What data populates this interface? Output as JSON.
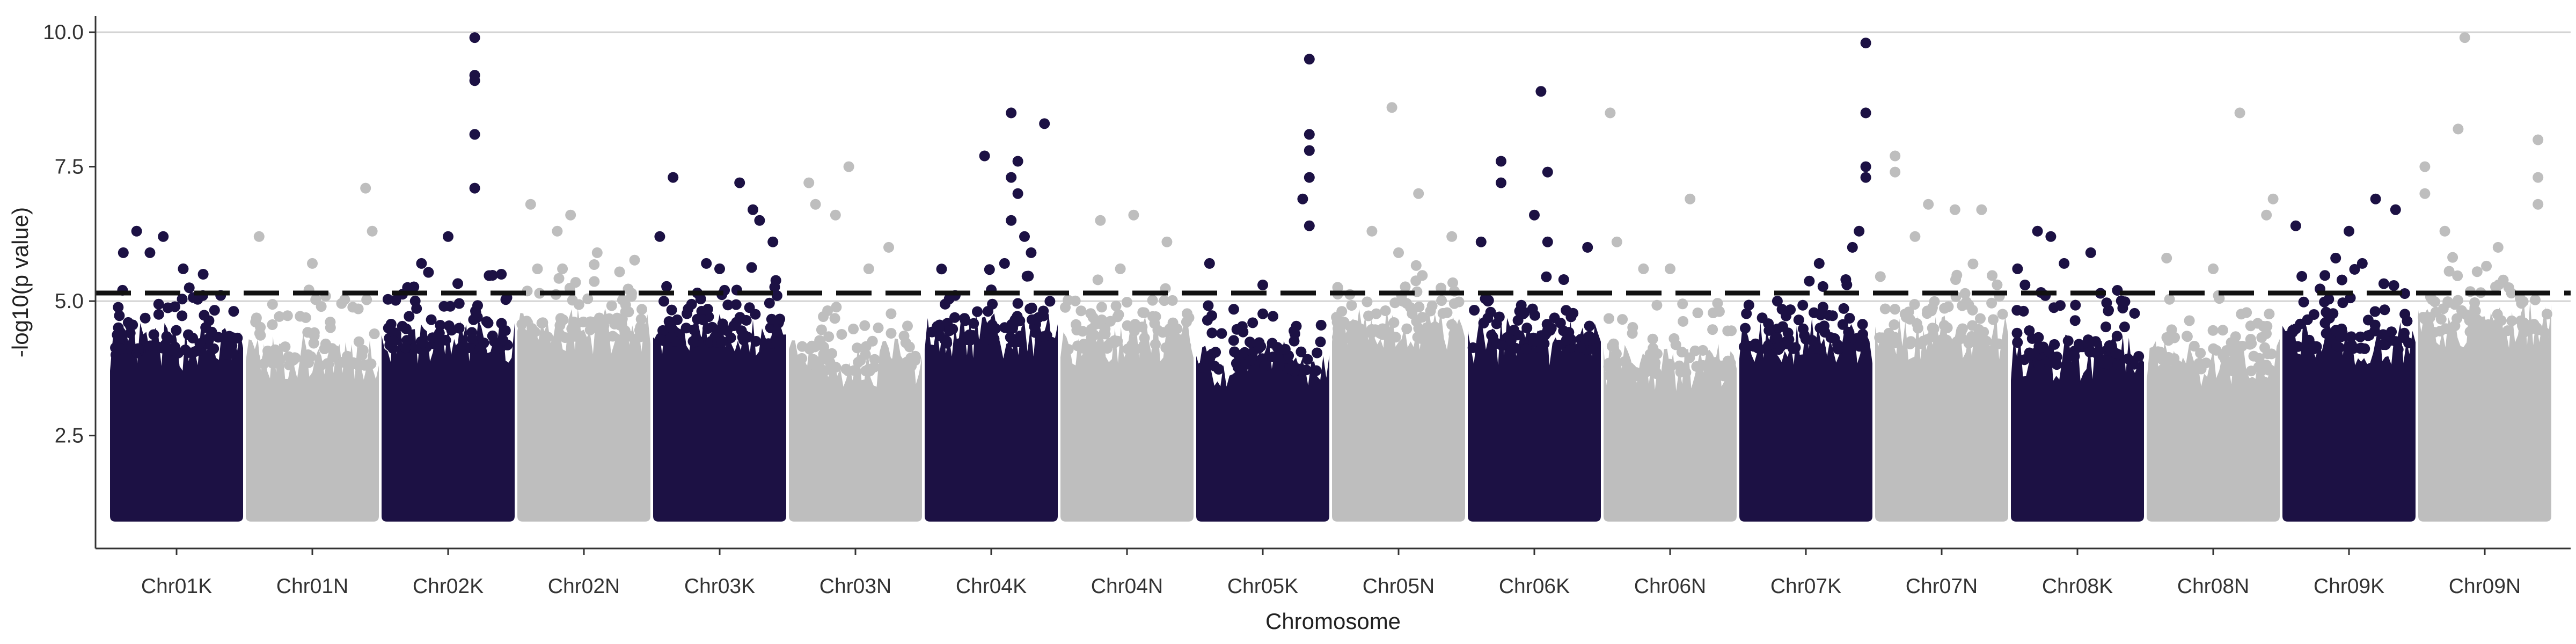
{
  "chart_data": {
    "type": "scatter",
    "subtype": "manhattan",
    "xlabel": "Chromosome",
    "ylabel": "-log10(p value)",
    "ylim": [
      0.4,
      10.3
    ],
    "yticks": [
      2.5,
      5.0,
      7.5,
      10.0
    ],
    "ytick_labels": [
      "2.5",
      "5.0",
      "7.5",
      "10.0"
    ],
    "grid": "horizontal major lines at 5.0 and 10.0",
    "threshold": 5.15,
    "baseline_min": 1.0,
    "colors": {
      "dark": "#1c1144",
      "light": "#bebebe",
      "threshold": "#111111",
      "grid": "#d3d3d3",
      "axis": "#333333"
    },
    "chromosomes": [
      {
        "name": "Chr01K",
        "color": "dark",
        "band_top": 4.2,
        "peaks": [
          [
            0.4,
            6.2
          ],
          [
            0.3,
            5.9
          ],
          [
            0.55,
            5.6
          ],
          [
            0.1,
            5.9
          ],
          [
            0.7,
            5.5
          ],
          [
            0.2,
            6.3
          ]
        ]
      },
      {
        "name": "Chr01N",
        "color": "light",
        "band_top": 4.0,
        "peaks": [
          [
            0.9,
            7.1
          ],
          [
            0.95,
            6.3
          ],
          [
            0.1,
            6.2
          ],
          [
            0.5,
            5.7
          ]
        ]
      },
      {
        "name": "Chr02K",
        "color": "dark",
        "band_top": 4.3,
        "peaks": [
          [
            0.7,
            9.9
          ],
          [
            0.7,
            9.2
          ],
          [
            0.7,
            9.1
          ],
          [
            0.7,
            8.1
          ],
          [
            0.7,
            7.1
          ],
          [
            0.5,
            6.2
          ],
          [
            0.3,
            5.7
          ],
          [
            0.9,
            5.5
          ]
        ]
      },
      {
        "name": "Chr02N",
        "color": "light",
        "band_top": 4.5,
        "peaks": [
          [
            0.1,
            6.8
          ],
          [
            0.4,
            6.6
          ],
          [
            0.3,
            6.3
          ],
          [
            0.6,
            5.9
          ]
        ]
      },
      {
        "name": "Chr03K",
        "color": "dark",
        "band_top": 4.4,
        "peaks": [
          [
            0.15,
            7.3
          ],
          [
            0.65,
            7.2
          ],
          [
            0.75,
            6.7
          ],
          [
            0.8,
            6.5
          ],
          [
            0.05,
            6.2
          ],
          [
            0.9,
            6.1
          ],
          [
            0.4,
            5.7
          ],
          [
            0.5,
            5.6
          ]
        ]
      },
      {
        "name": "Chr03N",
        "color": "light",
        "band_top": 3.9,
        "peaks": [
          [
            0.45,
            7.5
          ],
          [
            0.15,
            7.2
          ],
          [
            0.35,
            6.6
          ],
          [
            0.2,
            6.8
          ],
          [
            0.75,
            6.0
          ],
          [
            0.6,
            5.6
          ]
        ]
      },
      {
        "name": "Chr04K",
        "color": "dark",
        "band_top": 4.4,
        "peaks": [
          [
            0.65,
            8.5
          ],
          [
            0.9,
            8.3
          ],
          [
            0.45,
            7.7
          ],
          [
            0.7,
            7.6
          ],
          [
            0.65,
            7.3
          ],
          [
            0.7,
            7.0
          ],
          [
            0.65,
            6.5
          ],
          [
            0.75,
            6.2
          ],
          [
            0.8,
            5.9
          ],
          [
            0.6,
            5.7
          ]
        ]
      },
      {
        "name": "Chr04N",
        "color": "light",
        "band_top": 4.3,
        "peaks": [
          [
            0.55,
            6.6
          ],
          [
            0.3,
            6.5
          ],
          [
            0.8,
            6.1
          ],
          [
            0.45,
            5.6
          ]
        ]
      },
      {
        "name": "Chr05K",
        "color": "dark",
        "band_top": 3.9,
        "peaks": [
          [
            0.85,
            9.5
          ],
          [
            0.85,
            8.1
          ],
          [
            0.85,
            7.8
          ],
          [
            0.85,
            7.3
          ],
          [
            0.8,
            6.9
          ],
          [
            0.85,
            6.4
          ],
          [
            0.1,
            5.7
          ],
          [
            0.5,
            5.3
          ]
        ]
      },
      {
        "name": "Chr05N",
        "color": "light",
        "band_top": 4.5,
        "peaks": [
          [
            0.45,
            8.6
          ],
          [
            0.65,
            7.0
          ],
          [
            0.3,
            6.3
          ],
          [
            0.9,
            6.2
          ],
          [
            0.5,
            5.9
          ]
        ]
      },
      {
        "name": "Chr06K",
        "color": "dark",
        "band_top": 4.3,
        "peaks": [
          [
            0.55,
            8.9
          ],
          [
            0.25,
            7.6
          ],
          [
            0.6,
            7.4
          ],
          [
            0.25,
            7.2
          ],
          [
            0.5,
            6.6
          ],
          [
            0.6,
            6.1
          ],
          [
            0.1,
            6.1
          ],
          [
            0.9,
            6.0
          ]
        ]
      },
      {
        "name": "Chr06N",
        "color": "light",
        "band_top": 3.8,
        "peaks": [
          [
            0.05,
            8.5
          ],
          [
            0.65,
            6.9
          ],
          [
            0.1,
            6.1
          ],
          [
            0.3,
            5.6
          ],
          [
            0.5,
            5.6
          ]
        ]
      },
      {
        "name": "Chr07K",
        "color": "dark",
        "band_top": 4.3,
        "peaks": [
          [
            0.95,
            9.8
          ],
          [
            0.95,
            8.5
          ],
          [
            0.95,
            7.5
          ],
          [
            0.95,
            7.3
          ],
          [
            0.9,
            6.3
          ],
          [
            0.85,
            6.0
          ],
          [
            0.6,
            5.7
          ],
          [
            0.8,
            5.4
          ]
        ]
      },
      {
        "name": "Chr07N",
        "color": "light",
        "band_top": 4.4,
        "peaks": [
          [
            0.15,
            7.7
          ],
          [
            0.15,
            7.4
          ],
          [
            0.4,
            6.8
          ],
          [
            0.6,
            6.7
          ],
          [
            0.8,
            6.7
          ],
          [
            0.3,
            6.2
          ]
        ]
      },
      {
        "name": "Chr08K",
        "color": "dark",
        "band_top": 4.0,
        "peaks": [
          [
            0.2,
            6.3
          ],
          [
            0.3,
            6.2
          ],
          [
            0.6,
            5.9
          ],
          [
            0.4,
            5.7
          ],
          [
            0.05,
            5.6
          ],
          [
            0.8,
            5.2
          ]
        ]
      },
      {
        "name": "Chr08N",
        "color": "light",
        "band_top": 3.9,
        "peaks": [
          [
            0.7,
            8.5
          ],
          [
            0.95,
            6.9
          ],
          [
            0.9,
            6.6
          ],
          [
            0.15,
            5.8
          ],
          [
            0.5,
            5.6
          ]
        ]
      },
      {
        "name": "Chr09K",
        "color": "dark",
        "band_top": 4.3,
        "peaks": [
          [
            0.7,
            6.9
          ],
          [
            0.85,
            6.7
          ],
          [
            0.1,
            6.4
          ],
          [
            0.5,
            6.3
          ],
          [
            0.4,
            5.8
          ],
          [
            0.6,
            5.7
          ]
        ]
      },
      {
        "name": "Chr09N",
        "color": "light",
        "band_top": 4.6,
        "peaks": [
          [
            0.35,
            9.9
          ],
          [
            0.3,
            8.2
          ],
          [
            0.9,
            8.0
          ],
          [
            0.05,
            7.5
          ],
          [
            0.9,
            7.3
          ],
          [
            0.05,
            7.0
          ],
          [
            0.9,
            6.8
          ],
          [
            0.2,
            6.3
          ],
          [
            0.6,
            6.0
          ]
        ]
      }
    ]
  }
}
